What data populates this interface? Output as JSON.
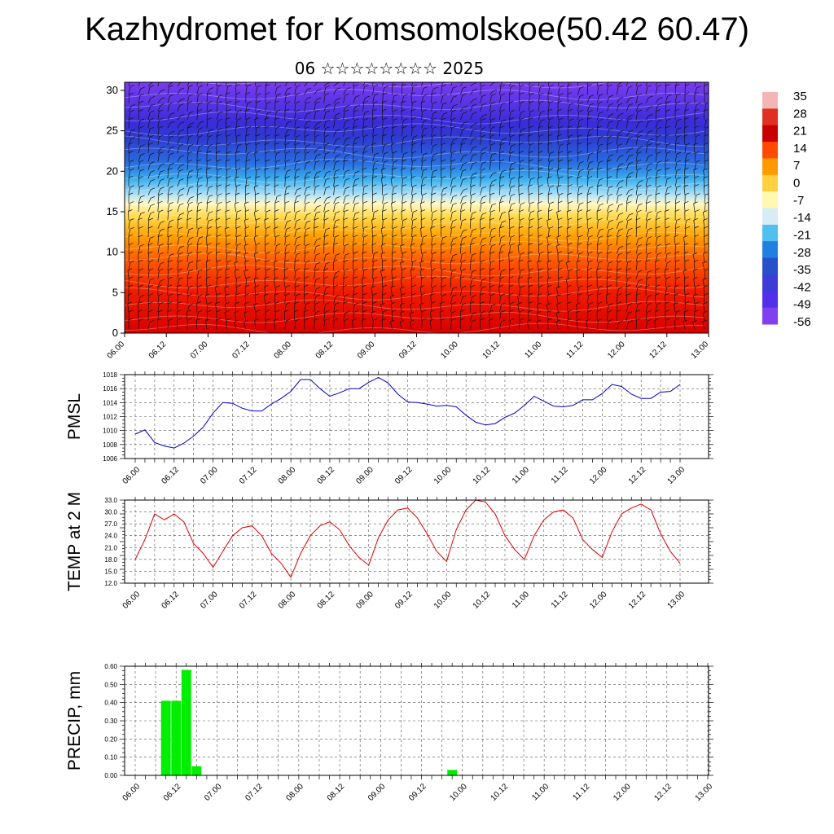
{
  "header": {
    "title": "Kazhydromet for Komsomolskoe(50.42 60.47)",
    "subtitle": "06 ☆☆☆☆☆☆☆☆ 2025"
  },
  "time_labels": [
    "06.00",
    "06.12",
    "07.00",
    "07.12",
    "08.00",
    "08.12",
    "09.00",
    "09.12",
    "10.00",
    "10.12",
    "11.00",
    "11.12",
    "12.00",
    "12.12",
    "13.00"
  ],
  "chart_data": [
    {
      "type": "heatmap",
      "name": "temperature-height-section",
      "y_ticks": [
        0,
        5,
        10,
        15,
        20,
        25,
        30
      ],
      "ylim": [
        0,
        31
      ],
      "colorbar": {
        "labels": [
          "35",
          "28",
          "21",
          "14",
          "7",
          "0",
          "-7",
          "-14",
          "-21",
          "-28",
          "-35",
          "-42",
          "-49",
          "-56"
        ],
        "colors": [
          "#f5b5b5",
          "#e03020",
          "#c80000",
          "#ff4a00",
          "#ff9a00",
          "#ffd040",
          "#fff8b0",
          "#d8ecf6",
          "#50c0f0",
          "#2080e0",
          "#2850c8",
          "#3c3cd8",
          "#5030e8",
          "#8040f0"
        ]
      },
      "layers": [
        {
          "y": 0,
          "color": "#d80000"
        },
        {
          "y": 5,
          "color": "#ee1a00"
        },
        {
          "y": 9,
          "color": "#ff5a00"
        },
        {
          "y": 12,
          "color": "#ffa000"
        },
        {
          "y": 14.5,
          "color": "#ffdc50"
        },
        {
          "y": 16,
          "color": "#fff8c8"
        },
        {
          "y": 17,
          "color": "#b8e4f6"
        },
        {
          "y": 19,
          "color": "#3cb0ee"
        },
        {
          "y": 21,
          "color": "#2a6ee0"
        },
        {
          "y": 24,
          "color": "#2d3cd0"
        },
        {
          "y": 26,
          "color": "#3a2cd8"
        },
        {
          "y": 31,
          "color": "#7a3cf0"
        }
      ]
    },
    {
      "type": "line",
      "name": "pmsl",
      "ylabel": "PMSL",
      "ylim": [
        1006,
        1018
      ],
      "y_ticks": [
        "1006",
        "1008",
        "1010",
        "1012",
        "1014",
        "1016",
        "1018"
      ],
      "color": "#0000cc",
      "values": [
        1009.5,
        1010.1,
        1008.3,
        1007.8,
        1007.5,
        1008.2,
        1009.2,
        1010.5,
        1012.5,
        1014.0,
        1013.9,
        1013.2,
        1012.8,
        1012.8,
        1013.8,
        1014.6,
        1015.6,
        1017.3,
        1017.3,
        1016.0,
        1014.9,
        1015.4,
        1016.0,
        1016.0,
        1016.9,
        1017.6,
        1016.8,
        1015.2,
        1014.1,
        1014.0,
        1013.8,
        1013.5,
        1013.6,
        1013.4,
        1012.2,
        1011.2,
        1010.8,
        1011.0,
        1011.9,
        1012.5,
        1013.6,
        1014.9,
        1014.2,
        1013.5,
        1013.4,
        1013.6,
        1014.4,
        1014.4,
        1015.3,
        1016.6,
        1016.3,
        1015.2,
        1014.6,
        1014.6,
        1015.5,
        1015.6,
        1016.6
      ]
    },
    {
      "type": "line",
      "name": "temp-2m",
      "ylabel": "TEMP at 2 M",
      "ylim": [
        12,
        33
      ],
      "y_ticks": [
        "12.0",
        "15.0",
        "18.0",
        "21.0",
        "24.0",
        "27.0",
        "30.0",
        "33.0"
      ],
      "color": "#dd0000",
      "values": [
        18.0,
        23.0,
        29.5,
        28.0,
        29.5,
        27.5,
        22.0,
        19.5,
        16.0,
        20.0,
        24.0,
        26.0,
        26.5,
        24.0,
        19.5,
        17.0,
        13.5,
        19.5,
        24.0,
        26.5,
        27.5,
        25.5,
        21.5,
        18.5,
        16.5,
        23.5,
        28.0,
        30.5,
        31.0,
        28.5,
        24.5,
        20.0,
        17.5,
        25.5,
        30.5,
        33.0,
        32.5,
        29.5,
        24.0,
        20.5,
        18.0,
        24.0,
        28.0,
        30.0,
        30.5,
        28.5,
        23.0,
        20.5,
        18.5,
        25.0,
        29.5,
        31.0,
        32.0,
        30.5,
        24.5,
        20.0,
        17.0
      ]
    },
    {
      "type": "bar",
      "name": "precip",
      "ylabel": "PRECIP, mm",
      "ylim": [
        0,
        0.6
      ],
      "y_ticks": [
        "0.00",
        "0.10",
        "0.20",
        "0.30",
        "0.40",
        "0.50",
        "0.60"
      ],
      "color": "#00ee00",
      "values": [
        0,
        0,
        0,
        0.41,
        0.41,
        0.58,
        0.05,
        0,
        0,
        0,
        0,
        0,
        0,
        0,
        0,
        0,
        0,
        0,
        0,
        0,
        0,
        0,
        0,
        0,
        0,
        0,
        0,
        0,
        0,
        0,
        0,
        0.03,
        0,
        0,
        0,
        0,
        0,
        0,
        0,
        0,
        0,
        0,
        0,
        0,
        0,
        0,
        0,
        0,
        0,
        0,
        0,
        0,
        0,
        0,
        0,
        0,
        0
      ]
    }
  ]
}
